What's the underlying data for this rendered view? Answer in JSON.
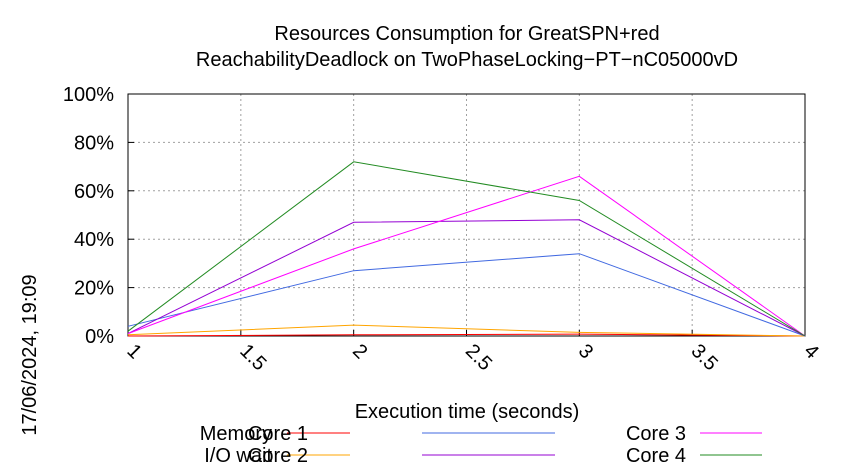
{
  "chart_data": {
    "type": "line",
    "title": "Resources Consumption for GreatSPN+red",
    "subtitle": "ReachabilityDeadlock on TwoPhaseLocking−PT−nC05000vD",
    "xlabel": "Execution time (seconds)",
    "ylabel": "",
    "side_label": "17/06/2024, 19:09",
    "xlim": [
      1,
      4
    ],
    "ylim": [
      0,
      100
    ],
    "x_ticks": [
      1,
      1.5,
      2,
      2.5,
      3,
      3.5,
      4
    ],
    "x_tick_labels": [
      "1",
      "1.5",
      "2",
      "2.5",
      "3",
      "3.5",
      "4"
    ],
    "y_ticks": [
      0,
      20,
      40,
      60,
      80,
      100
    ],
    "y_tick_labels": [
      "0%",
      "20%",
      "40%",
      "60%",
      "80%",
      "100%"
    ],
    "grid": true,
    "legend_position": "bottom",
    "series": [
      {
        "name": "Memory",
        "color": "#ff0000",
        "x": [
          1,
          2,
          3,
          4
        ],
        "values": [
          0,
          0.5,
          0.8,
          0
        ]
      },
      {
        "name": "I/O wait",
        "color": "#ffa500",
        "x": [
          1,
          2,
          3,
          4
        ],
        "values": [
          0.5,
          4.5,
          1.5,
          0
        ]
      },
      {
        "name": "Core 1",
        "color": "#4169e1",
        "x": [
          1,
          2,
          3,
          4
        ],
        "values": [
          4,
          27,
          34,
          0
        ]
      },
      {
        "name": "Core 2",
        "color": "#9400d3",
        "x": [
          1,
          2,
          3,
          4
        ],
        "values": [
          1,
          47,
          48,
          0
        ]
      },
      {
        "name": "Core 3",
        "color": "#ff00ff",
        "x": [
          1,
          2,
          3,
          4
        ],
        "values": [
          1,
          36,
          66,
          0
        ]
      },
      {
        "name": "Core 4",
        "color": "#228b22",
        "x": [
          1,
          2,
          3,
          4
        ],
        "values": [
          2,
          72,
          56,
          0
        ]
      }
    ]
  }
}
